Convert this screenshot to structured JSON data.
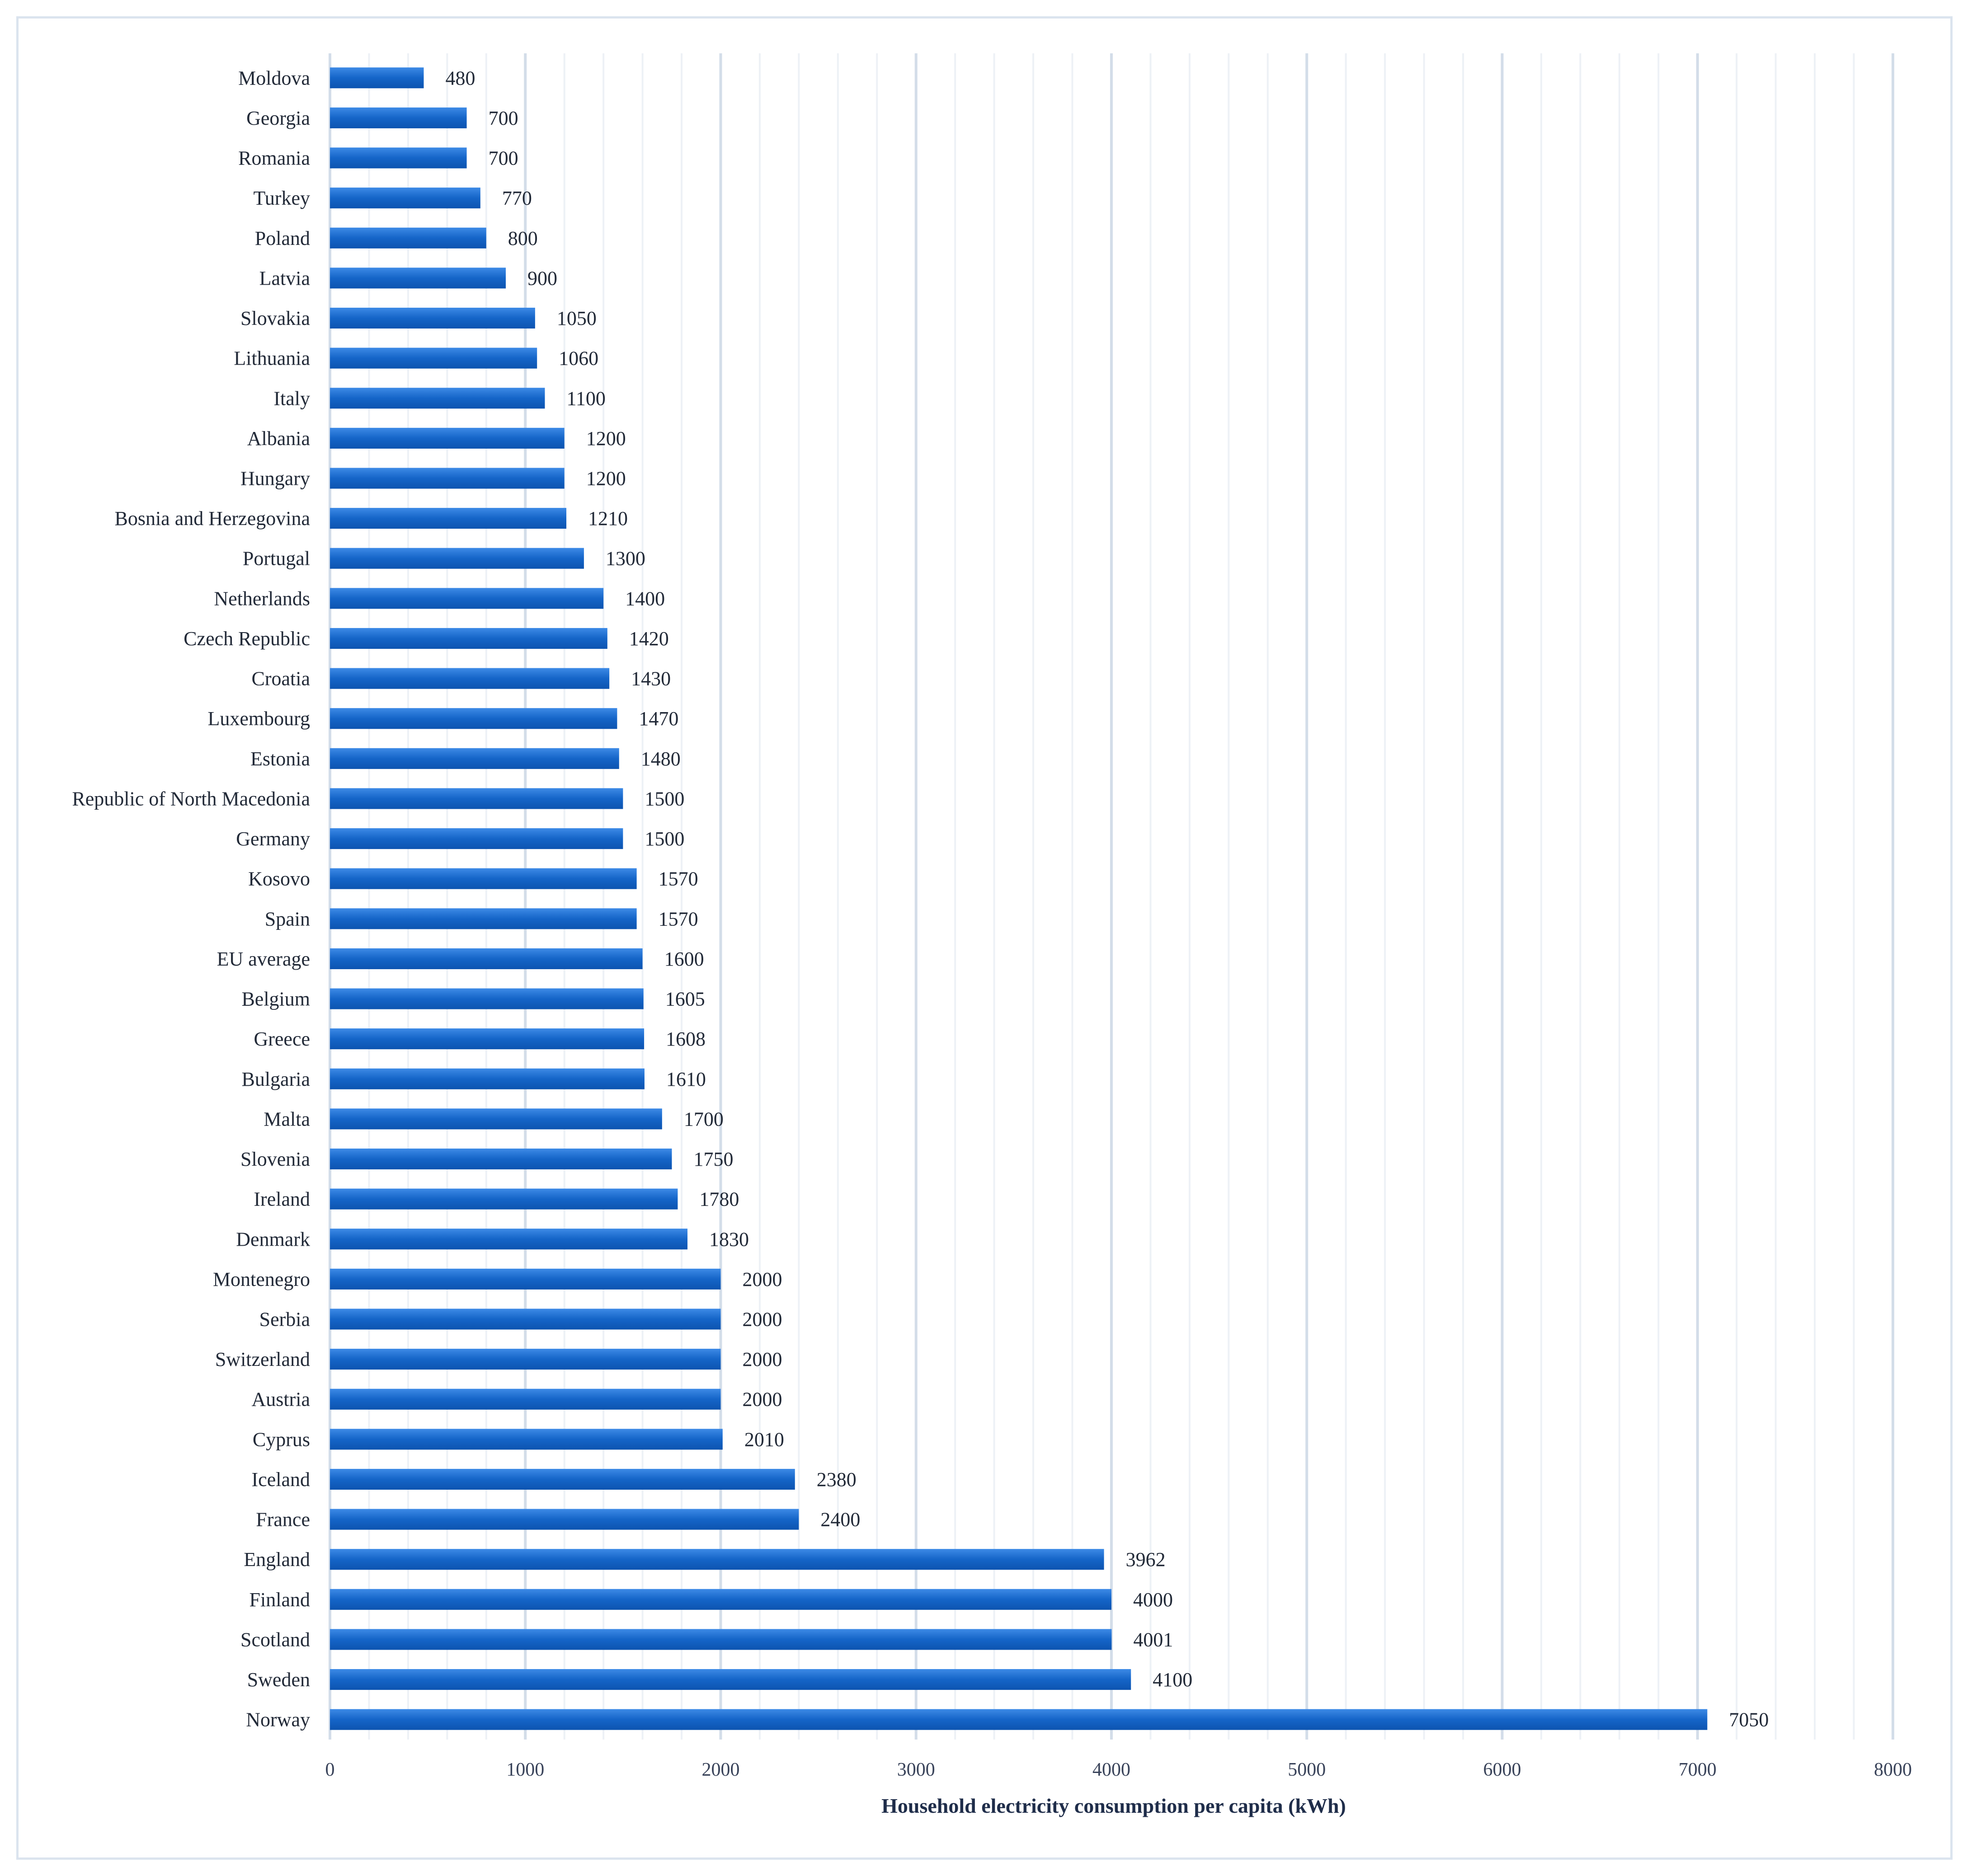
{
  "chart_data": {
    "type": "bar",
    "orientation": "horizontal",
    "title": "",
    "xlabel": "Household electricity consumption per capita (kWh)",
    "ylabel": "",
    "xlim": [
      0,
      8000
    ],
    "x_ticks": [
      0,
      1000,
      2000,
      3000,
      4000,
      5000,
      6000,
      7000,
      8000
    ],
    "grid": true,
    "legend": "none",
    "bar_color": "#1565c8",
    "categories": [
      "Moldova",
      "Georgia",
      "Romania",
      "Turkey",
      "Poland",
      "Latvia",
      "Slovakia",
      "Lithuania",
      "Italy",
      "Albania",
      "Hungary",
      "Bosnia and Herzegovina",
      "Portugal",
      "Netherlands",
      "Czech Republic",
      "Croatia",
      "Luxembourg",
      "Estonia",
      "Republic of North Macedonia",
      "Germany",
      "Kosovo",
      "Spain",
      "EU average",
      "Belgium",
      "Greece",
      "Bulgaria",
      "Malta",
      "Slovenia",
      "Ireland",
      "Denmark",
      "Montenegro",
      "Serbia",
      "Switzerland",
      "Austria",
      "Cyprus",
      "Iceland",
      "France",
      "England",
      "Finland",
      "Scotland",
      "Sweden",
      "Norway"
    ],
    "values": [
      480,
      700,
      700,
      770,
      800,
      900,
      1050,
      1060,
      1100,
      1200,
      1200,
      1210,
      1300,
      1400,
      1420,
      1430,
      1470,
      1480,
      1500,
      1500,
      1570,
      1570,
      1600,
      1605,
      1608,
      1610,
      1700,
      1750,
      1780,
      1830,
      2000,
      2000,
      2000,
      2000,
      2010,
      2380,
      2400,
      3962,
      4000,
      4001,
      4100,
      7050
    ]
  }
}
